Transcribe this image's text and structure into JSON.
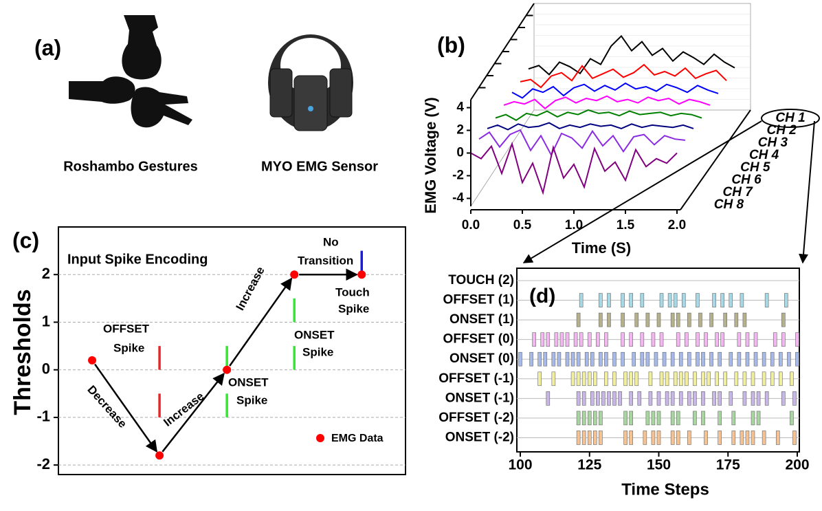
{
  "panel_a": {
    "label": "(a)",
    "captions": [
      "Roshambo Gestures",
      "MYO EMG Sensor"
    ]
  },
  "chart_data": [
    {
      "type": "line3d",
      "label": "(b)",
      "ylabel": "EMG Voltage (V)",
      "xlabel": "Time (S)",
      "xlim": [
        0,
        2
      ],
      "xticks": [
        {
          "value": 0,
          "label": "0.0"
        },
        {
          "value": 0.5,
          "label": "0.5"
        },
        {
          "value": 1,
          "label": "1.0"
        },
        {
          "value": 1.5,
          "label": "1.5"
        },
        {
          "value": 2,
          "label": "2.0"
        }
      ],
      "ylim": [
        -4.7,
        4.7
      ],
      "yticks": [
        4,
        2,
        0,
        -2,
        -4
      ],
      "x": [
        0,
        0.1,
        0.2,
        0.3,
        0.4,
        0.5,
        0.6,
        0.7,
        0.8,
        0.9,
        1.0,
        1.1,
        1.2,
        1.3,
        1.4,
        1.5,
        1.6,
        1.7,
        1.8,
        1.9,
        2.0
      ],
      "series": [
        {
          "name": "CH 1",
          "color": "#000000",
          "values": [
            0.2,
            0.5,
            -0.3,
            0.8,
            0.4,
            -0.2,
            1.1,
            0.6,
            2.2,
            3.1,
            1.8,
            2.6,
            1.4,
            2.0,
            0.9,
            1.7,
            1.2,
            0.6,
            1.5,
            0.8,
            0.3
          ]
        },
        {
          "name": "CH 2",
          "color": "#ff0000",
          "values": [
            0.1,
            0.3,
            -0.4,
            0.6,
            0.9,
            0.2,
            1.5,
            0.4,
            0.8,
            1.2,
            0.5,
            0.9,
            1.6,
            0.7,
            1.0,
            0.6,
            1.3,
            0.4,
            0.8,
            1.1,
            0.2
          ]
        },
        {
          "name": "CH 3",
          "color": "#0000ff",
          "values": [
            0.2,
            -0.3,
            0.5,
            0.2,
            0.7,
            -0.1,
            0.6,
            0.9,
            0.3,
            0.8,
            0.4,
            1.0,
            0.5,
            0.7,
            0.3,
            0.9,
            0.6,
            0.2,
            0.8,
            0.4,
            0.1
          ]
        },
        {
          "name": "CH 4",
          "color": "#ff00ff",
          "values": [
            0.1,
            0.4,
            0.2,
            0.6,
            -0.2,
            0.5,
            0.8,
            0.3,
            0.7,
            0.5,
            0.9,
            0.4,
            0.6,
            0.3,
            0.8,
            0.5,
            0.7,
            0.2,
            0.6,
            0.4,
            0.1
          ]
        },
        {
          "name": "CH 5",
          "color": "#008000",
          "values": [
            0.0,
            0.3,
            -0.2,
            0.4,
            0.2,
            0.6,
            0.1,
            0.5,
            0.3,
            0.7,
            0.4,
            0.5,
            0.2,
            0.6,
            0.3,
            0.4,
            0.5,
            0.2,
            0.4,
            0.3,
            0.0
          ]
        },
        {
          "name": "CH 6",
          "color": "#000080",
          "values": [
            0.1,
            0.4,
            0.0,
            0.5,
            0.2,
            0.3,
            0.6,
            0.1,
            0.4,
            0.2,
            0.5,
            0.3,
            0.4,
            0.1,
            0.5,
            0.2,
            0.4,
            0.3,
            0.2,
            0.4,
            0.1
          ]
        },
        {
          "name": "CH 7",
          "color": "#8a2be2",
          "values": [
            0.2,
            0.8,
            -0.5,
            0.6,
            1.0,
            -0.8,
            0.5,
            -1.2,
            0.7,
            0.3,
            -0.6,
            0.9,
            -0.4,
            0.5,
            -0.9,
            0.4,
            0.6,
            -0.3,
            0.5,
            0.2,
            0.1
          ]
        },
        {
          "name": "CH 8",
          "color": "#800080",
          "values": [
            0.0,
            -0.5,
            0.6,
            -1.8,
            0.8,
            -2.6,
            -0.9,
            -3.5,
            0.5,
            -2.2,
            -1.0,
            -3.0,
            0.4,
            -1.6,
            -0.8,
            -2.4,
            0.3,
            -1.2,
            -0.5,
            -0.9,
            0.0
          ]
        }
      ]
    },
    {
      "type": "line",
      "label": "(c)",
      "ylabel": "Thresholds",
      "title": "Input Spike Encoding",
      "x": [
        0,
        1,
        2,
        3,
        4
      ],
      "xlim": [
        -0.5,
        4.65
      ],
      "ylim": [
        -2.2,
        3.0
      ],
      "yticks": [
        -2,
        -1,
        0,
        1,
        2
      ],
      "grid": true,
      "series": [
        {
          "name": "EMG Data",
          "color": "#ff0000",
          "values": [
            0.2,
            -1.8,
            0,
            2,
            2
          ]
        }
      ],
      "legend": "lower right",
      "spikes": [
        {
          "x": 1,
          "y0": 0.5,
          "y1": 0.0,
          "color": "#e8262a"
        },
        {
          "x": 1,
          "y0": -0.5,
          "y1": -1.0,
          "color": "#e8262a"
        },
        {
          "x": 2,
          "y0": 0.5,
          "y1": 0.0,
          "color": "#33e833"
        },
        {
          "x": 2,
          "y0": -0.5,
          "y1": -1.0,
          "color": "#33e833"
        },
        {
          "x": 3,
          "y0": 1.5,
          "y1": 1.0,
          "color": "#33e833"
        },
        {
          "x": 3,
          "y0": 0.5,
          "y1": 0.0,
          "color": "#33e833"
        },
        {
          "x": 4,
          "y0": 2.5,
          "y1": 2.0,
          "color": "#1a1ae6"
        }
      ],
      "annotations": [
        "OFFSET",
        "Spike",
        "Decrease",
        "Increase",
        "Increase",
        "ONSET",
        "Spike",
        "ONSET",
        "Spike",
        "No",
        "Transition",
        "Touch",
        "Spike"
      ]
    },
    {
      "type": "raster",
      "label": "(d)",
      "xlabel": "Time Steps",
      "xlim": [
        100,
        200
      ],
      "xticks": [
        100,
        125,
        150,
        175,
        200
      ],
      "series": [
        {
          "name": "TOUCH (2)",
          "color": "#a6d8e6",
          "values": []
        },
        {
          "name": "OFFSET (1)",
          "color": "#a6d8e6",
          "values": [
            122,
            129,
            132,
            137,
            140,
            144,
            151,
            154,
            156,
            159,
            164,
            170,
            173,
            176,
            180,
            189,
            196
          ]
        },
        {
          "name": "ONSET (1)",
          "color": "#b5b18c",
          "values": [
            121,
            129,
            132,
            137,
            142,
            146,
            150,
            155,
            157,
            161,
            165,
            169,
            174,
            178,
            181,
            195
          ]
        },
        {
          "name": "OFFSET (0)",
          "color": "#f3b6f0",
          "values": [
            105,
            108,
            110,
            113,
            115,
            117,
            120,
            122,
            125,
            128,
            131,
            137,
            140,
            144,
            148,
            151,
            157,
            160,
            164,
            167,
            171,
            173,
            179,
            182,
            185,
            192,
            195,
            200
          ]
        },
        {
          "name": "ONSET (0)",
          "color": "#a6b9e8",
          "values": [
            100,
            104,
            107,
            109,
            112,
            114,
            117,
            119,
            121,
            124,
            126,
            129,
            131,
            134,
            137,
            141,
            144,
            146,
            149,
            152,
            155,
            158,
            161,
            164,
            166,
            169,
            172,
            176,
            179,
            182,
            185,
            188,
            191,
            194,
            197,
            200
          ]
        },
        {
          "name": "OFFSET (-1)",
          "color": "#f1ef9e",
          "values": [
            107,
            112,
            119,
            121,
            123,
            125,
            127,
            131,
            134,
            138,
            140,
            142,
            147,
            151,
            153,
            156,
            158,
            160,
            163,
            166,
            168,
            171,
            174,
            178,
            181,
            184,
            188,
            191,
            194,
            198
          ]
        },
        {
          "name": "ONSET (-1)",
          "color": "#c7b6e6",
          "values": [
            110,
            121,
            123,
            126,
            128,
            130,
            132,
            134,
            136,
            140,
            143,
            147,
            150,
            153,
            155,
            158,
            161,
            163,
            166,
            170,
            172,
            176,
            181,
            184,
            186,
            189,
            195,
            199
          ]
        },
        {
          "name": "OFFSET (-2)",
          "color": "#a9d6a0",
          "values": [
            121,
            123,
            125,
            127,
            129,
            138,
            140,
            146,
            148,
            150,
            155,
            157,
            163,
            166,
            172,
            177,
            184,
            186,
            198
          ]
        },
        {
          "name": "ONSET (-2)",
          "color": "#f5c293",
          "values": [
            121,
            123,
            125,
            127,
            129,
            138,
            140,
            145,
            148,
            150,
            155,
            157,
            161,
            167,
            172,
            177,
            180,
            182,
            184,
            188,
            193,
            199
          ]
        }
      ]
    }
  ]
}
